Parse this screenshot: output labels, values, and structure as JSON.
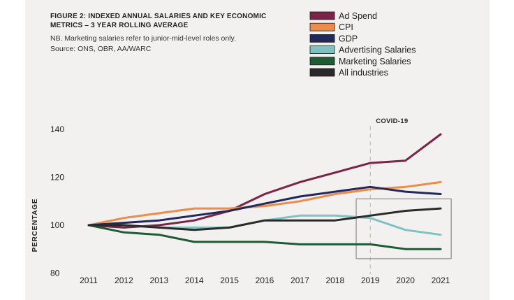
{
  "chart_data": {
    "type": "line",
    "title": "FIGURE 2: INDEXED ANNUAL SALARIES AND KEY ECONOMIC METRICS – 3 YEAR ROLLING AVERAGE",
    "notes": [
      "NB. Marketing salaries refer to junior-mid-level roles only.",
      "Source: ONS, OBR, AA/WARC"
    ],
    "ylabel": "PERCENTAGE",
    "xlabel": "",
    "x": [
      "2011",
      "2012",
      "2013",
      "2014",
      "2015",
      "2016",
      "2017",
      "2018",
      "2019",
      "2020",
      "2021"
    ],
    "ylim": [
      80,
      140
    ],
    "yticks": [
      80,
      100,
      120,
      140
    ],
    "grid": false,
    "legend_position": "top-right",
    "annotation": {
      "label": "COVID-19",
      "x": "2019"
    },
    "highlight_box": {
      "x_from": "2018.6",
      "x_to": "2021.3",
      "y_from": 86,
      "y_to": 111
    },
    "series": [
      {
        "name": "Ad Spend",
        "color": "#7a2548",
        "values": [
          100,
          99,
          100,
          102,
          106,
          113,
          118,
          122,
          126,
          127,
          138
        ]
      },
      {
        "name": "CPI",
        "color": "#ee8b48",
        "values": [
          100,
          103,
          105,
          107,
          107,
          108,
          110,
          113,
          115,
          116,
          118
        ]
      },
      {
        "name": "GDP",
        "color": "#22275c",
        "values": [
          100,
          101,
          102,
          104,
          106,
          109,
          112,
          114,
          116,
          114,
          113
        ]
      },
      {
        "name": "Advertising Salaries",
        "color": "#7fc2c1",
        "values": [
          100,
          100,
          99,
          99,
          99,
          102,
          104,
          104,
          103,
          98,
          96
        ]
      },
      {
        "name": "Marketing Salaries",
        "color": "#1d5c35",
        "values": [
          100,
          97,
          96,
          93,
          93,
          93,
          92,
          92,
          92,
          90,
          90
        ]
      },
      {
        "name": "All industries",
        "color": "#2a2a2a",
        "values": [
          100,
          100,
          99,
          98,
          99,
          102,
          102,
          102,
          104,
          106,
          107
        ]
      }
    ]
  }
}
